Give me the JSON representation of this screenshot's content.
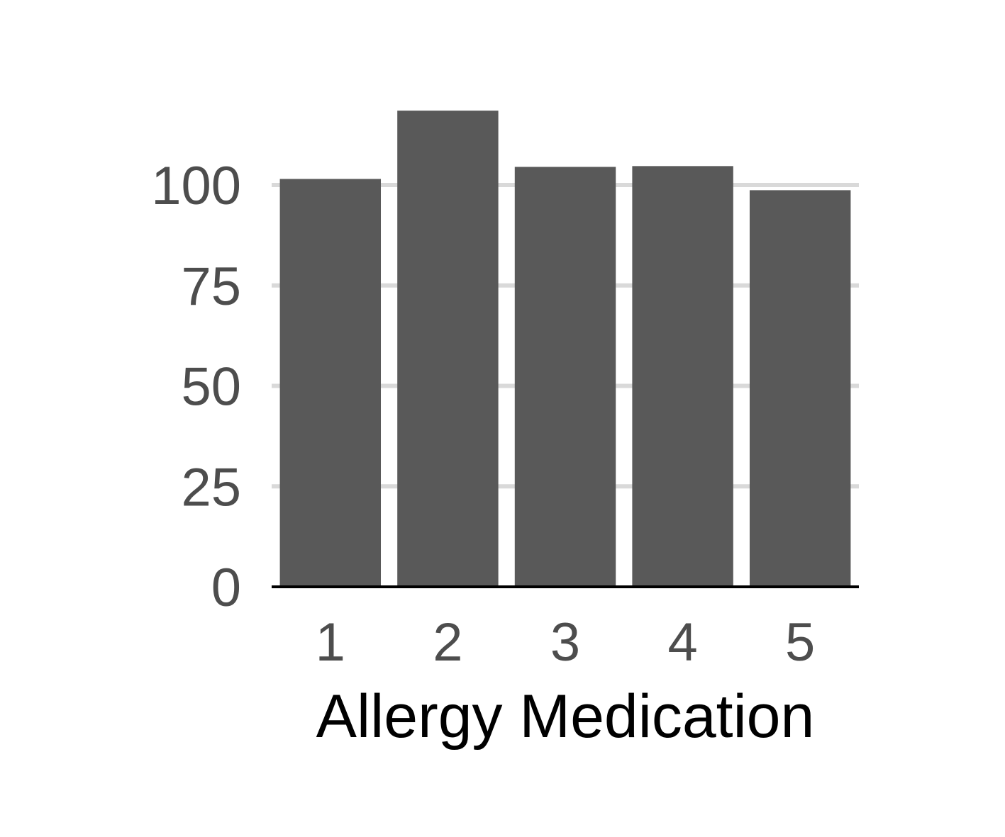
{
  "chart_data": {
    "type": "bar",
    "title": "",
    "xlabel": "Allergy Medication",
    "ylabel": "",
    "categories": [
      "1",
      "2",
      "3",
      "4",
      "5"
    ],
    "values": [
      101.5,
      118.5,
      104.5,
      104.7,
      98.7
    ],
    "ylim": [
      0,
      120
    ],
    "yticks": [
      0,
      25,
      50,
      75,
      100
    ],
    "grid": "horizontal",
    "legend": "none",
    "colors": {
      "bar": "#595959",
      "grid": "#d9d9d9",
      "axis": "#000000",
      "tick_label": "#4d4d4d"
    }
  }
}
